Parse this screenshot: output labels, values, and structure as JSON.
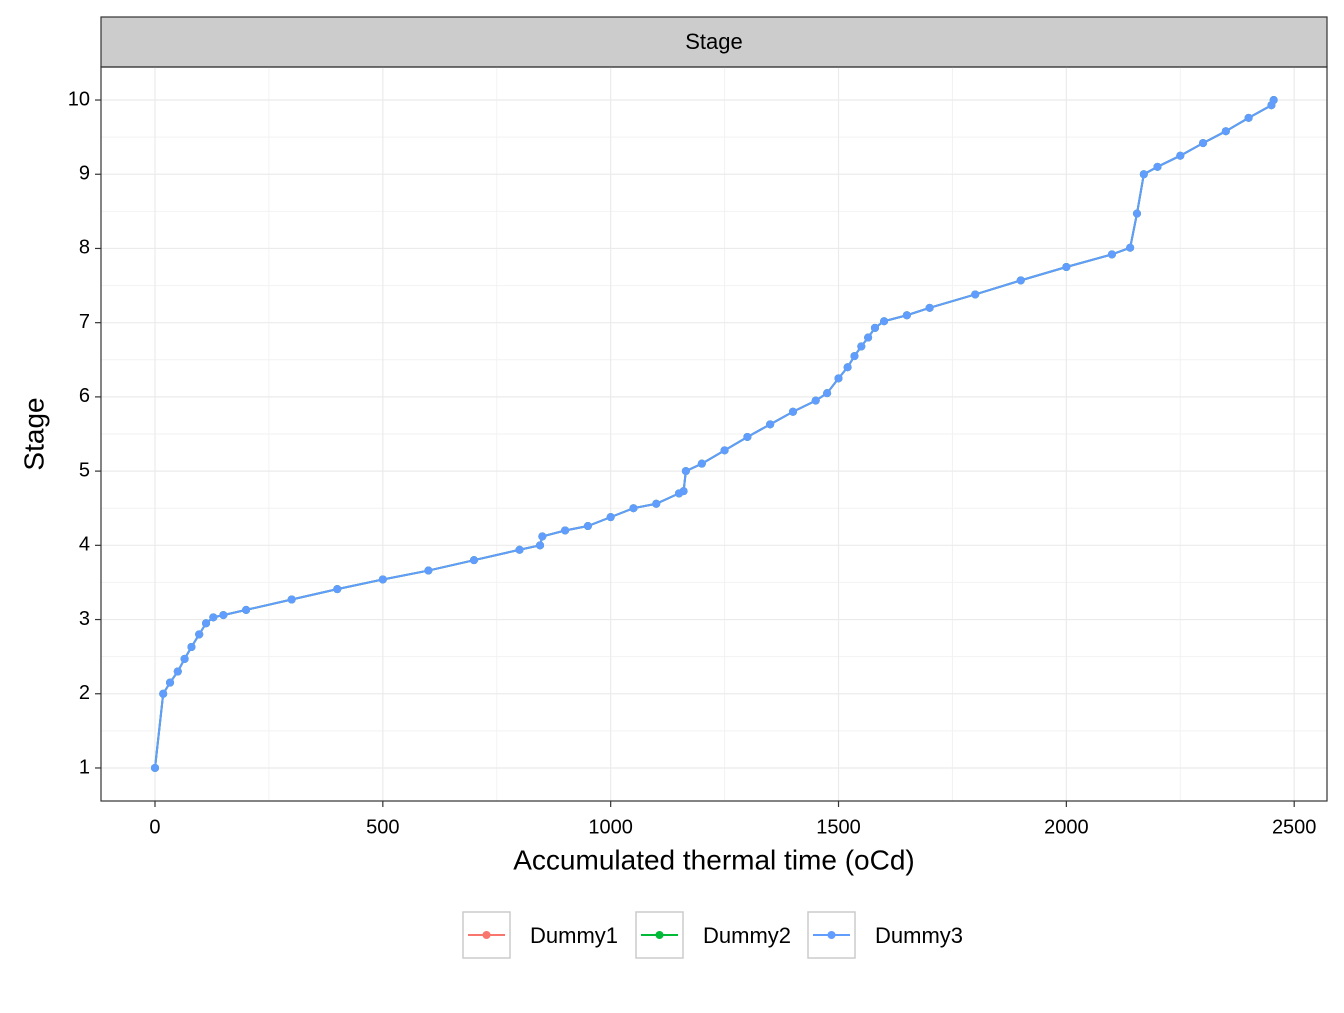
{
  "chart_data": {
    "type": "line",
    "strip": "Stage",
    "x_label": "Accumulated thermal time (oCd)",
    "y_label": "Stage",
    "x": [
      0,
      18,
      33,
      50,
      65,
      80,
      97,
      112,
      128,
      150,
      200,
      300,
      400,
      500,
      600,
      700,
      800,
      845,
      850,
      900,
      950,
      1000,
      1050,
      1100,
      1150,
      1160,
      1165,
      1200,
      1250,
      1300,
      1350,
      1400,
      1450,
      1475,
      1500,
      1520,
      1535,
      1550,
      1565,
      1580,
      1600,
      1650,
      1700,
      1800,
      1900,
      2000,
      2100,
      2140,
      2155,
      2170,
      2200,
      2250,
      2300,
      2350,
      2400,
      2450,
      2455
    ],
    "series": [
      {
        "name": "Dummy1",
        "color": "#F8766D",
        "values": [
          1,
          2,
          2.15,
          2.3,
          2.47,
          2.63,
          2.8,
          2.95,
          3.03,
          3.06,
          3.13,
          3.27,
          3.41,
          3.54,
          3.66,
          3.8,
          3.94,
          4,
          4.12,
          4.2,
          4.26,
          4.38,
          4.5,
          4.56,
          4.7,
          4.73,
          5,
          5.1,
          5.28,
          5.46,
          5.63,
          5.8,
          5.95,
          6.05,
          6.25,
          6.4,
          6.55,
          6.68,
          6.8,
          6.93,
          7.02,
          7.1,
          7.2,
          7.38,
          7.57,
          7.75,
          7.92,
          8.01,
          8.47,
          9,
          9.1,
          9.25,
          9.42,
          9.58,
          9.76,
          9.93,
          10
        ]
      },
      {
        "name": "Dummy2",
        "color": "#00BA38",
        "values": [
          1,
          2,
          2.15,
          2.3,
          2.47,
          2.63,
          2.8,
          2.95,
          3.03,
          3.06,
          3.13,
          3.27,
          3.41,
          3.54,
          3.66,
          3.8,
          3.94,
          4,
          4.12,
          4.2,
          4.26,
          4.38,
          4.5,
          4.56,
          4.7,
          4.73,
          5,
          5.1,
          5.28,
          5.46,
          5.63,
          5.8,
          5.95,
          6.05,
          6.25,
          6.4,
          6.55,
          6.68,
          6.8,
          6.93,
          7.02,
          7.1,
          7.2,
          7.38,
          7.57,
          7.75,
          7.92,
          8.01,
          8.47,
          9,
          9.1,
          9.25,
          9.42,
          9.58,
          9.76,
          9.93,
          10
        ]
      },
      {
        "name": "Dummy3",
        "color": "#619CFF",
        "values": [
          1,
          2,
          2.15,
          2.3,
          2.47,
          2.63,
          2.8,
          2.95,
          3.03,
          3.06,
          3.13,
          3.27,
          3.41,
          3.54,
          3.66,
          3.8,
          3.94,
          4,
          4.12,
          4.2,
          4.26,
          4.38,
          4.5,
          4.56,
          4.7,
          4.73,
          5,
          5.1,
          5.28,
          5.46,
          5.63,
          5.8,
          5.95,
          6.05,
          6.25,
          6.4,
          6.55,
          6.68,
          6.8,
          6.93,
          7.02,
          7.1,
          7.2,
          7.38,
          7.57,
          7.75,
          7.92,
          8.01,
          8.47,
          9,
          9.1,
          9.25,
          9.42,
          9.58,
          9.76,
          9.93,
          10
        ]
      }
    ],
    "xlim": [
      -118.5,
      2572
    ],
    "ylim": [
      0.555,
      10.445
    ],
    "xticks": [
      0,
      500,
      1000,
      1500,
      2000,
      2500
    ],
    "yticks": [
      1,
      2,
      3,
      4,
      5,
      6,
      7,
      8,
      9,
      10
    ],
    "grid": true,
    "legend": "bottom"
  }
}
